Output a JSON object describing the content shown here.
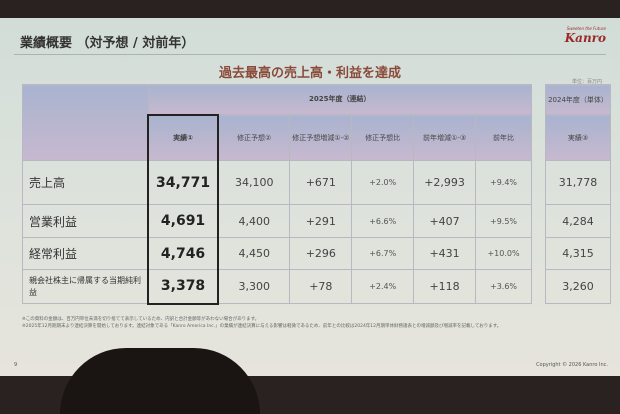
{
  "slide": {
    "title": "業績概要 （対予想 / 対前年）",
    "logo_tagline": "Sweeten the Future",
    "logo_name": "Kanro",
    "headline": "過去最高の売上高・利益を達成",
    "unit": "単位：百万円",
    "page": "9",
    "copyright": "Copyright © 2026 Kanro Inc."
  },
  "table": {
    "group_2025": "2025年度（連結）",
    "group_2024": "2024年度（単体）",
    "columns": [
      "実績①",
      "修正予想②",
      "修正予想増減①-②",
      "修正予想比",
      "前年増減①-③",
      "前年比"
    ],
    "col_2024": "実績③",
    "rows": [
      {
        "label": "売上高",
        "actual": "34,771",
        "forecast": "34,100",
        "diff_fc": "+671",
        "ratio_fc": "+2.0%",
        "diff_py": "+2,993",
        "ratio_py": "+9.4%",
        "prev": "31,778"
      },
      {
        "label": "営業利益",
        "actual": "4,691",
        "forecast": "4,400",
        "diff_fc": "+291",
        "ratio_fc": "+6.6%",
        "diff_py": "+407",
        "ratio_py": "+9.5%",
        "prev": "4,284"
      },
      {
        "label": "経常利益",
        "actual": "4,746",
        "forecast": "4,450",
        "diff_fc": "+296",
        "ratio_fc": "+6.7%",
        "diff_py": "+431",
        "ratio_py": "+10.0%",
        "prev": "4,315"
      },
      {
        "label": "親会社株主に帰属する当期純利益",
        "actual": "3,378",
        "forecast": "3,300",
        "diff_fc": "+78",
        "ratio_fc": "+2.4%",
        "diff_py": "+118",
        "ratio_py": "+3.6%",
        "prev": "3,260"
      }
    ]
  },
  "notes": [
    "※この資料の金額は、百万円単位未満を切り捨てて表示しているため、内訳と合計金額等があわない場合があります。",
    "※2025年12月期期末より連結決算を開始しております。連結対象である「Kanro America Inc.」の業績が連結決算に与える影響は軽微であるため、前年との比較は2024年12月期単体財務諸表との増減額及び増減率を記載しております。"
  ]
}
